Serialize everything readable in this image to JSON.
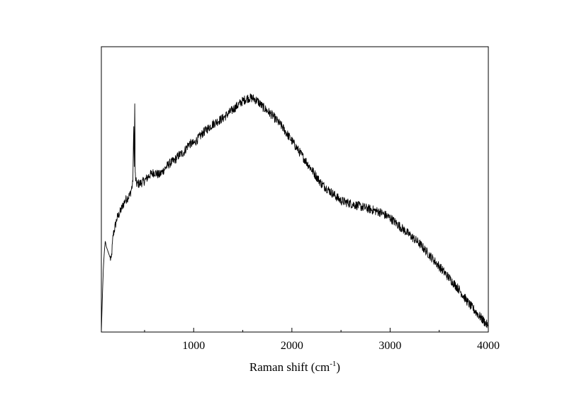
{
  "chart_data": {
    "type": "line",
    "title": "",
    "xlabel": "Raman shift (cm",
    "xlabel_sup": "-1",
    "xlabel_tail": ")",
    "ylabel": "",
    "xlim": [
      60,
      4000
    ],
    "ylim": [
      0,
      100
    ],
    "xticks": [
      1000,
      2000,
      3000,
      4000
    ],
    "xtick_labels": [
      "1000",
      "2000",
      "3000",
      "4000"
    ],
    "minor_xticks": [
      500,
      1500,
      2500,
      3500
    ],
    "y_ticks_shown": false,
    "grid": false,
    "legend": "none",
    "line_color": "#000000",
    "series": [
      {
        "x": [
          60,
          70,
          80,
          90,
          100,
          110,
          120,
          140,
          160,
          180,
          200,
          220,
          250,
          300,
          350,
          380,
          390,
          395,
          400,
          405,
          410,
          420,
          450,
          500,
          550,
          600,
          650,
          700,
          750,
          800,
          850,
          900,
          950,
          1000,
          1100,
          1200,
          1300,
          1400,
          1500,
          1550,
          1600,
          1650,
          1700,
          1800,
          1900,
          2000,
          2100,
          2200,
          2300,
          2400,
          2500,
          2600,
          2700,
          2800,
          2900,
          3000,
          3100,
          3200,
          3300,
          3400,
          3500,
          3600,
          3700,
          3800,
          3900,
          4000
        ],
        "values": [
          0,
          12,
          22,
          28,
          32,
          30,
          29,
          27,
          25,
          34,
          37,
          40,
          42,
          46,
          48,
          52,
          72,
          58,
          80,
          56,
          53,
          52,
          52,
          53,
          55,
          56,
          55,
          57,
          59,
          60,
          62,
          63,
          66,
          66,
          70,
          73,
          75,
          78,
          81,
          82,
          82,
          81,
          79,
          76,
          72,
          67,
          62,
          57,
          52,
          49,
          46,
          45,
          44,
          43,
          42,
          40,
          37,
          34,
          31,
          27,
          23,
          19,
          15,
          10,
          6,
          2
        ]
      }
    ]
  }
}
